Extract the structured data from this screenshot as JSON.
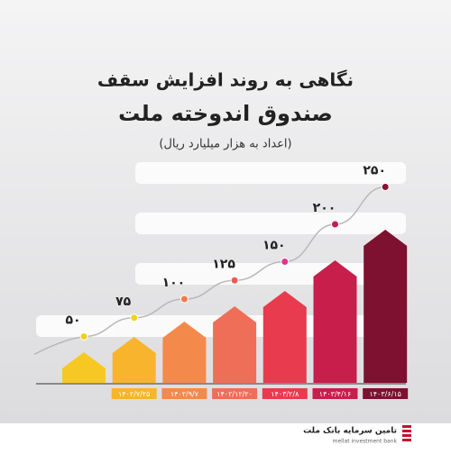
{
  "chart_data": {
    "type": "bar",
    "title": "نگاهی به روند افزایش سقف",
    "subtitle": "صندوق اندوخته ملت",
    "note": "(اعداد به هزار میلیارد ریال)",
    "categories": [
      null,
      "۱۴۰۲/۷/۲۵",
      "۱۴۰۲/۹/۷",
      "۱۴۰۲/۱۲/۲۰",
      "۱۴۰۳/۲/۸",
      "۱۴۰۳/۴/۱۶",
      "۱۴۰۳/۶/۱۵"
    ],
    "values": [
      50,
      75,
      100,
      125,
      150,
      200,
      250
    ],
    "value_labels": [
      "۵۰",
      "۷۵",
      "۱۰۰",
      "۱۲۵",
      "۱۵۰",
      "۲۰۰",
      "۲۵۰"
    ],
    "colors": [
      "#f7c823",
      "#f8b42c",
      "#f3894a",
      "#ef6e58",
      "#e83b4e",
      "#c71e4c",
      "#7e1030"
    ],
    "dot_colors": [
      "#f2d01c",
      "#f2d01c",
      "#f07a4a",
      "#ee5a5a",
      "#e0338e",
      "#c41d4d",
      "#8a1233"
    ]
  },
  "footer": {
    "brand": "تامین سرمایه بانک ملت",
    "brand_en": "mellat investment bank"
  }
}
